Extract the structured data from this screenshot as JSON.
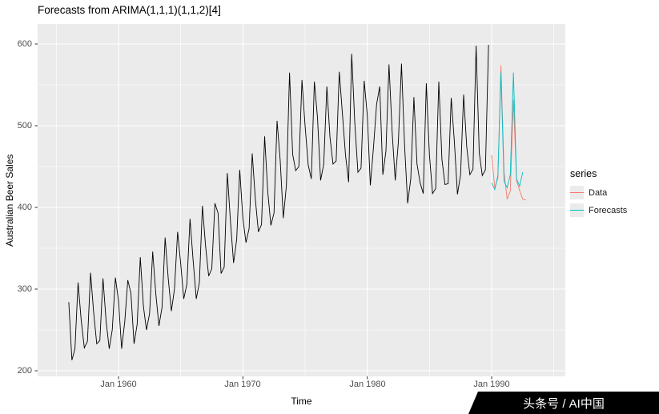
{
  "title": "Forecasts from ARIMA(1,1,1)(1,1,2)[4]",
  "watermark": "头条号 / AI中国",
  "chart_data": {
    "type": "line",
    "title": "Forecasts from ARIMA(1,1,1)(1,1,2)[4]",
    "xlabel": "Time",
    "ylabel": "Australian Beer Sales",
    "x_tick_labels": [
      "Jan 1960",
      "Jan 1970",
      "Jan 1980",
      "Jan 1990"
    ],
    "x_tick_years": [
      1960,
      1970,
      1980,
      1990
    ],
    "x_minor_years": [
      1955,
      1965,
      1975,
      1985,
      1995
    ],
    "y_tick_labels": [
      "200",
      "300",
      "400",
      "500",
      "600"
    ],
    "y_tick_values": [
      200,
      300,
      400,
      500,
      600
    ],
    "y_minor_values": [
      250,
      350,
      450,
      550
    ],
    "ylim": [
      193,
      618
    ],
    "xlim": [
      1954.2,
      1994.1
    ],
    "frequency": "quarterly",
    "grid": true,
    "panel_bg": "#EBEBEB",
    "grid_color": "#FFFFFF",
    "legend": {
      "title": "series",
      "position": "right",
      "items": [
        {
          "label": "Data",
          "color": "#F8766D"
        },
        {
          "label": "Forecasts",
          "color": "#00BFC4"
        }
      ]
    },
    "series": [
      {
        "name": "observed",
        "color": "#000000",
        "start": 1956.0,
        "step": 0.25,
        "values": [
          284,
          213,
          227,
          308,
          262,
          228,
          236,
          320,
          272,
          233,
          237,
          313,
          261,
          227,
          250,
          314,
          286,
          227,
          260,
          311,
          295,
          233,
          257,
          339,
          279,
          250,
          270,
          346,
          294,
          255,
          278,
          363,
          313,
          273,
          300,
          370,
          331,
          288,
          306,
          386,
          335,
          288,
          308,
          402,
          353,
          316,
          325,
          405,
          393,
          319,
          327,
          442,
          383,
          332,
          361,
          446,
          387,
          357,
          374,
          466,
          410,
          370,
          379,
          487,
          419,
          378,
          393,
          506,
          458,
          387,
          427,
          565,
          465,
          445,
          450,
          556,
          500,
          452,
          435,
          554,
          510,
          433,
          453,
          548,
          486,
          453,
          457,
          566,
          515,
          464,
          431,
          588,
          503,
          443,
          448,
          555,
          513,
          427,
          473,
          526,
          548,
          440,
          469,
          575,
          493,
          433,
          480,
          576,
          475,
          405,
          435,
          535,
          453,
          430,
          417,
          552,
          464,
          417,
          423,
          554,
          459,
          428,
          429,
          534,
          481,
          416,
          440,
          538,
          474,
          440,
          447,
          598,
          467,
          439,
          446,
          599
        ]
      },
      {
        "name": "Data",
        "color": "#F8766D",
        "start": 1990.0,
        "step": 0.25,
        "values": [
          464,
          424,
          436,
          574,
          443,
          410,
          420,
          532,
          433,
          421,
          410,
          409
        ]
      },
      {
        "name": "Forecasts",
        "color": "#00BFC4",
        "start": 1990.0,
        "step": 0.25,
        "values": [
          430,
          422,
          439,
          565,
          432,
          424,
          440,
          565,
          435,
          426,
          443
        ]
      }
    ]
  }
}
